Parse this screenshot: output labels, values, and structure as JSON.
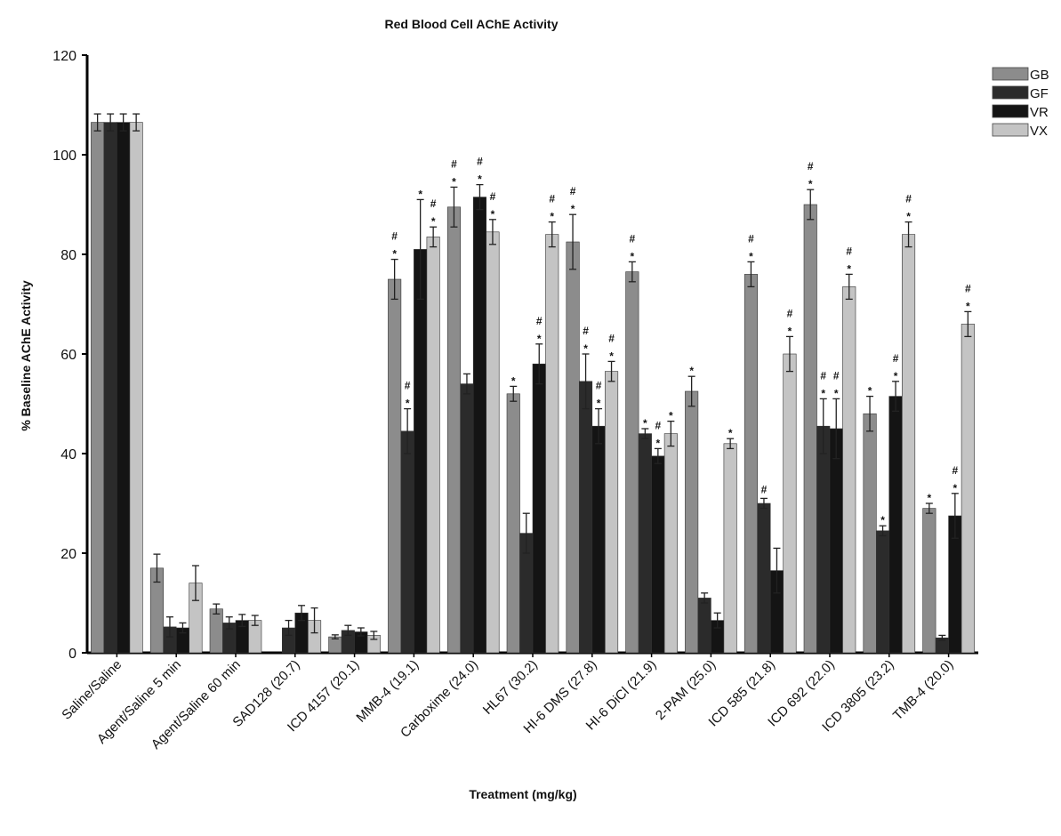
{
  "chart_data": {
    "type": "bar",
    "title": "Red Blood Cell AChE Activity",
    "xlabel": "Treatment (mg/kg)",
    "ylabel": "% Baseline AChE Activity",
    "ylim": [
      0,
      120
    ],
    "yticks": [
      0,
      20,
      40,
      60,
      80,
      100,
      120
    ],
    "grid": false,
    "legend_position": "top-right",
    "categories": [
      "Saline/Saline",
      "Agent/Saline 5 min",
      "Agent/Saline 60 min",
      "SAD128 (20.7)",
      "ICD 4157 (20.1)",
      "MMB-4 (19.1)",
      "Carboxime (24.0)",
      "HL67 (30.2)",
      "HI-6 DMS (27.8)",
      "HI-6 DiCl (21.9)",
      "2-PAM (25.0)",
      "ICD 585 (21.8)",
      "ICD 692 (22.0)",
      "ICD 3805 (23.2)",
      "TMB-4 (20.0)"
    ],
    "series": [
      {
        "name": "GB",
        "color": "#8c8c8c",
        "values": [
          106.5,
          17,
          8.8,
          0,
          3.2,
          75,
          89.5,
          52,
          82.5,
          76.5,
          52.5,
          76,
          90,
          48,
          29
        ],
        "errors": [
          1.7,
          2.8,
          1.0,
          0,
          0.4,
          4.0,
          4.0,
          1.5,
          5.5,
          2.0,
          3.0,
          2.5,
          3.0,
          3.5,
          1.0
        ],
        "markers": [
          "",
          "",
          "",
          "",
          "",
          "#*",
          "#*",
          "*",
          "#*",
          "#*",
          "*",
          "#*",
          "#*",
          "*",
          "*"
        ]
      },
      {
        "name": "GF",
        "color": "#2b2b2b",
        "values": [
          106.5,
          5.2,
          6.0,
          5.0,
          4.5,
          44.5,
          54,
          24,
          54.5,
          44,
          11,
          30,
          45.5,
          24.5,
          3
        ],
        "errors": [
          1.7,
          2.0,
          1.2,
          1.5,
          1.0,
          4.5,
          2.0,
          4.0,
          5.5,
          1.0,
          1.0,
          1.0,
          5.5,
          1.0,
          0.5
        ],
        "markers": [
          "",
          "",
          "",
          "",
          "",
          "#*",
          "",
          "",
          "#*",
          "*",
          "",
          "#",
          "#*",
          "*",
          ""
        ]
      },
      {
        "name": "VR",
        "color": "#141414",
        "values": [
          106.5,
          5.0,
          6.5,
          8.0,
          4.2,
          81,
          91.5,
          58,
          45.5,
          39.5,
          6.5,
          16.5,
          45,
          51.5,
          27.5
        ],
        "errors": [
          1.7,
          1.0,
          1.2,
          1.5,
          0.8,
          10.0,
          2.5,
          4.0,
          3.5,
          1.5,
          1.5,
          4.5,
          6.0,
          3.0,
          4.5
        ],
        "markers": [
          "",
          "",
          "",
          "",
          "",
          "*",
          "#*",
          "#*",
          "#*",
          "#*",
          "",
          "",
          "#*",
          "#*",
          "#*"
        ]
      },
      {
        "name": "VX",
        "color": "#c4c4c4",
        "values": [
          106.5,
          14,
          6.5,
          6.5,
          3.5,
          83.5,
          84.5,
          84,
          56.5,
          44,
          42,
          60,
          73.5,
          84,
          66
        ],
        "errors": [
          1.7,
          3.5,
          1.0,
          2.5,
          0.8,
          2.0,
          2.5,
          2.5,
          2.0,
          2.5,
          1.0,
          3.5,
          2.5,
          2.5,
          2.5
        ],
        "markers": [
          "",
          "",
          "",
          "",
          "",
          "#*",
          "#*",
          "#*",
          "#*",
          "*",
          "*",
          "#*",
          "#*",
          "#*",
          "#*"
        ]
      }
    ]
  }
}
